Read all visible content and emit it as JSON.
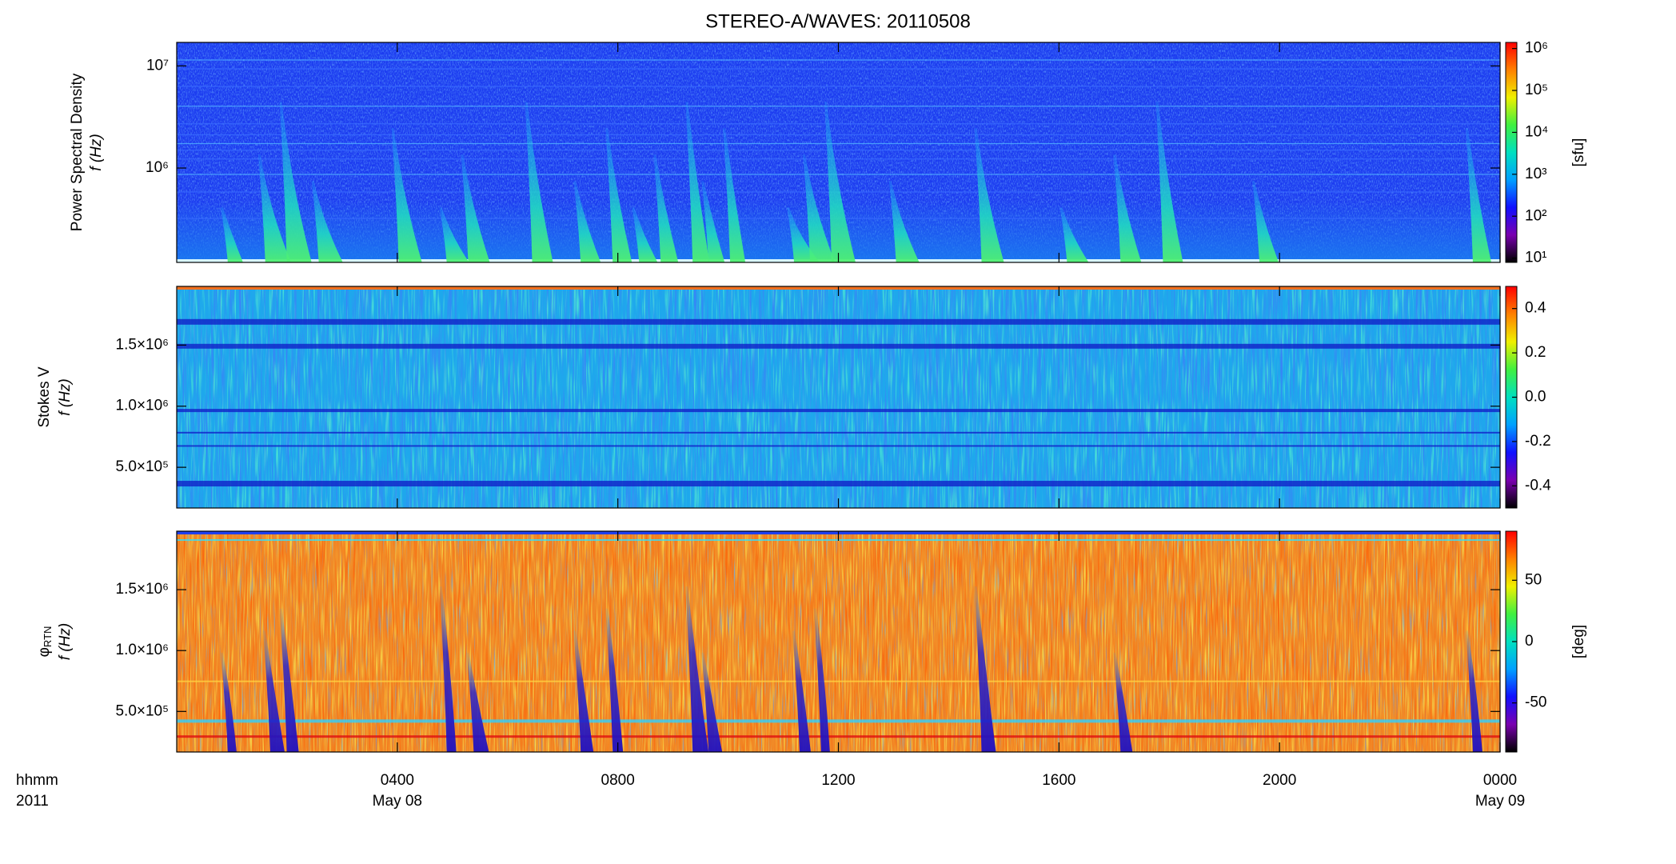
{
  "chart_data": [
    {
      "type": "heatmap",
      "title": "STEREO-A/WAVES: 20110508",
      "ylabel": "Power Spectral Density",
      "ylabel2": "f (Hz)",
      "yscale": "log",
      "ylim": [
        119000,
        17000000
      ],
      "yticks": [
        {
          "value": 1000000,
          "label": "10⁶"
        },
        {
          "value": 10000000,
          "label": "10⁷"
        }
      ],
      "xlim": [
        0,
        24
      ],
      "zscale": "log",
      "zlim": [
        7.9,
        1400000
      ],
      "zticks": [
        {
          "value": 10,
          "label": "10¹"
        },
        {
          "value": 100,
          "label": "10²"
        },
        {
          "value": 1000,
          "label": "10³"
        },
        {
          "value": 10000,
          "label": "10⁴"
        },
        {
          "value": 100000,
          "label": "10⁵"
        },
        {
          "value": 1000000,
          "label": "10⁶"
        }
      ],
      "zlabel": "[sfu]",
      "colormap": [
        "#000000",
        "#7a00b0",
        "#1010ff",
        "#00a0ff",
        "#00e0c0",
        "#40f040",
        "#f0f000",
        "#ff8000",
        "#ff0000"
      ],
      "bursts": [
        0.97,
        1.65,
        2.04,
        2.62,
        4.07,
        4.94,
        5.33,
        6.49,
        7.37,
        7.95,
        8.43,
        8.82,
        9.4,
        9.69,
        10.08,
        11.24,
        11.53,
        11.92,
        13.09,
        14.64,
        16.19,
        17.16,
        17.93,
        19.68,
        23.55
      ]
    },
    {
      "type": "heatmap",
      "ylabel": "Stokes V",
      "ylabel2": "f (Hz)",
      "ylim": [
        167000,
        1980000
      ],
      "yticks": [
        {
          "value": 500000,
          "label": "5.0×10⁵"
        },
        {
          "value": 1000000,
          "label": "1.0×10⁶"
        },
        {
          "value": 1500000,
          "label": "1.5×10⁶"
        }
      ],
      "xlim": [
        0,
        24
      ],
      "zlim": [
        -0.5,
        0.5
      ],
      "zticks": [
        -0.4,
        -0.2,
        {
          "value": 0,
          "label": "0.0"
        },
        0.2,
        0.4
      ],
      "colormap": [
        "#000000",
        "#7a00b0",
        "#1010ff",
        "#00a0ff",
        "#00e0c0",
        "#40f040",
        "#f0f000",
        "#ff8000",
        "#ff0000"
      ]
    },
    {
      "type": "heatmap",
      "ylabel": "φ",
      "ylabel_sub": "RTN",
      "ylabel2": "f (Hz)",
      "ylim": [
        167000,
        1980000
      ],
      "yticks": [
        {
          "value": 500000,
          "label": "5.0×10⁵"
        },
        {
          "value": 1000000,
          "label": "1.0×10⁶"
        },
        {
          "value": 1500000,
          "label": "1.5×10⁶"
        }
      ],
      "xlim": [
        0,
        24
      ],
      "xticks": [
        {
          "value": 4,
          "label": "0400"
        },
        {
          "value": 8,
          "label": "0800"
        },
        {
          "value": 12,
          "label": "1200"
        },
        {
          "value": 16,
          "label": "1600"
        },
        {
          "value": 20,
          "label": "2000"
        },
        {
          "value": 24,
          "label": "0000"
        }
      ],
      "date_labels": [
        {
          "value": 4,
          "label": "May 08"
        },
        {
          "value": 24,
          "label": "May 09"
        }
      ],
      "xlabel": "hhmm",
      "year_label": "2011",
      "zlim": [
        -90,
        90
      ],
      "zticks": [
        -50,
        0,
        50
      ],
      "zlabel": "[deg]",
      "colormap": [
        "#000000",
        "#7a00b0",
        "#1010ff",
        "#00a0ff",
        "#00e0c0",
        "#40f040",
        "#f0f000",
        "#ff8000",
        "#ff0000"
      ],
      "bursts": [
        0.97,
        1.74,
        2.04,
        4.94,
        5.43,
        7.37,
        7.95,
        9.4,
        9.69,
        11.34,
        11.73,
        14.64,
        17.16,
        23.55
      ]
    }
  ]
}
